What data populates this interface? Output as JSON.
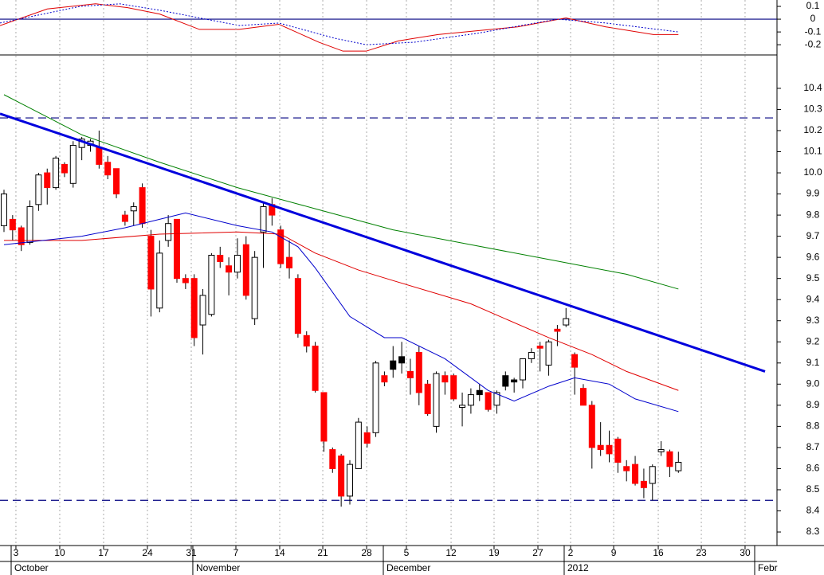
{
  "chart_data": [
    {
      "type": "line",
      "xlim": [
        -0.46,
        89.4
      ],
      "ylim": [
        -0.28,
        0.15
      ],
      "yticks": [
        0.1,
        0,
        -0.1,
        -0.2
      ],
      "hlines": [
        {
          "value": 0,
          "color": "#000080",
          "dash": false
        }
      ],
      "series": [
        {
          "color": "#e00000",
          "style": "solid",
          "x": [
            -0.46,
            5,
            10.6,
            14.3,
            18,
            22.6,
            27.2,
            31.8,
            36.4,
            39.2,
            41.9,
            45.6,
            50.2,
            59.4,
            65,
            69.6,
            75.1,
            78
          ],
          "values": [
            -0.05,
            0.08,
            0.12,
            0.09,
            0.04,
            -0.08,
            -0.08,
            -0.04,
            -0.18,
            -0.25,
            -0.25,
            -0.17,
            -0.12,
            -0.06,
            0.01,
            -0.06,
            -0.12,
            -0.12
          ]
        },
        {
          "color": "#0000cc",
          "style": "dotted",
          "x": [
            -0.46,
            8.8,
            13.4,
            18,
            27.2,
            31.8,
            38.3,
            41.9,
            47.5,
            54.8,
            64,
            69.6,
            78
          ],
          "values": [
            -0.03,
            0.1,
            0.12,
            0.07,
            -0.05,
            -0.03,
            -0.15,
            -0.2,
            -0.18,
            -0.11,
            0.0,
            -0.03,
            -0.1
          ]
        }
      ]
    },
    {
      "type": "candlestick",
      "xlim": [
        -0.46,
        89.4
      ],
      "ylim": [
        8.236,
        10.558
      ],
      "xgrid": true,
      "yticks": [
        10.4,
        10.3,
        10.2,
        10.1,
        {
          "value": 10,
          "label": "10.0"
        },
        9.9,
        9.8,
        9.7,
        9.6,
        9.5,
        9.4,
        9.3,
        9.2,
        9.1,
        {
          "value": 9,
          "label": "9.0"
        },
        8.9,
        8.8,
        8.7,
        8.6,
        8.5,
        8.4,
        8.3
      ],
      "xticks": [
        {
          "value": 1.38,
          "label": "3"
        },
        {
          "value": 6.45,
          "label": "10"
        },
        {
          "value": 11.52,
          "label": "17"
        },
        {
          "value": 16.59,
          "label": "24"
        },
        {
          "value": 21.66,
          "label": "31"
        },
        {
          "value": 26.82,
          "label": "7"
        },
        {
          "value": 31.89,
          "label": "14"
        },
        {
          "value": 36.87,
          "label": "21"
        },
        {
          "value": 41.94,
          "label": "28"
        },
        {
          "value": 46.54,
          "label": "5"
        },
        {
          "value": 51.71,
          "label": "12"
        },
        {
          "value": 56.68,
          "label": "19"
        },
        {
          "value": 61.75,
          "label": "27"
        },
        {
          "value": 65.53,
          "label": "2"
        },
        {
          "value": 70.51,
          "label": "9"
        },
        {
          "value": 75.67,
          "label": "16"
        },
        {
          "value": 80.65,
          "label": "23"
        },
        {
          "value": 85.71,
          "label": "30"
        }
      ],
      "month_ticks": [
        {
          "value": 0.83,
          "label": "October"
        },
        {
          "value": 21.84,
          "label": "November"
        },
        {
          "value": 43.87,
          "label": "December"
        },
        {
          "value": 64.79,
          "label": "2012"
        },
        {
          "value": 86.82,
          "label": "Febr"
        }
      ],
      "open": [
        9.75,
        9.78,
        9.74,
        9.67,
        9.85,
        10.0,
        9.93,
        10.04,
        9.95,
        10.12,
        10.13,
        10.12,
        10.05,
        10.02,
        9.8,
        9.82,
        9.93,
        9.7,
        9.36,
        9.68,
        9.78,
        9.5,
        9.5,
        9.28,
        9.33,
        9.61,
        9.56,
        9.53,
        9.66,
        9.31,
        9.72,
        9.85,
        9.73,
        9.6,
        9.5,
        9.23,
        9.18,
        8.96,
        8.69,
        8.66,
        8.47,
        8.6,
        8.77,
        8.77,
        9.04,
        9.07,
        9.1,
        9.06,
        9.15,
        9.0,
        8.8,
        9.04,
        9.04,
        8.89,
        8.9,
        8.95,
        8.96,
        8.9,
        8.99,
        9.01,
        9.02,
        9.12,
        9.18,
        9.09,
        9.26,
        9.28,
        9.14,
        8.98,
        8.9,
        8.71,
        8.71,
        8.74,
        8.61,
        8.62,
        8.54,
        8.53,
        8.68,
        8.68,
        8.59
      ],
      "high": [
        9.92,
        9.8,
        9.75,
        9.87,
        10.0,
        10.02,
        10.08,
        10.05,
        10.15,
        10.17,
        10.16,
        10.2,
        10.08,
        10.02,
        9.82,
        9.86,
        9.95,
        9.73,
        9.68,
        9.8,
        9.78,
        9.52,
        9.52,
        9.45,
        9.62,
        9.65,
        9.6,
        9.69,
        9.7,
        9.63,
        9.86,
        9.88,
        9.75,
        9.68,
        9.52,
        9.25,
        9.2,
        8.96,
        8.7,
        8.67,
        8.64,
        8.84,
        8.8,
        9.11,
        9.06,
        9.18,
        9.2,
        9.12,
        9.18,
        9.02,
        9.06,
        9.06,
        9.05,
        8.96,
        8.98,
        9.0,
        8.96,
        8.97,
        9.06,
        9.03,
        9.12,
        9.17,
        9.2,
        9.21,
        9.28,
        9.36,
        9.15,
        9.0,
        8.92,
        8.82,
        8.78,
        8.75,
        8.64,
        8.66,
        8.6,
        8.62,
        8.73,
        8.69,
        8.68
      ],
      "low": [
        9.72,
        9.68,
        9.63,
        9.66,
        9.82,
        9.85,
        9.92,
        9.98,
        9.93,
        10.06,
        10.1,
        10.02,
        9.97,
        9.88,
        9.75,
        9.75,
        9.74,
        9.32,
        9.34,
        9.65,
        9.48,
        9.45,
        9.18,
        9.14,
        9.32,
        9.55,
        9.42,
        9.5,
        9.4,
        9.28,
        9.55,
        9.75,
        9.55,
        9.5,
        9.22,
        9.15,
        8.96,
        8.68,
        8.58,
        8.42,
        8.43,
        8.6,
        8.7,
        8.75,
        8.99,
        9.03,
        9.05,
        8.95,
        8.9,
        8.85,
        8.77,
        8.95,
        8.92,
        8.8,
        8.86,
        8.92,
        8.87,
        8.86,
        8.97,
        8.96,
        8.98,
        9.1,
        9.06,
        9.04,
        9.18,
        9.27,
        8.95,
        8.9,
        8.6,
        8.66,
        8.63,
        8.58,
        8.54,
        8.52,
        8.46,
        8.45,
        8.66,
        8.56,
        8.58
      ],
      "close": [
        9.9,
        9.73,
        9.66,
        9.84,
        9.99,
        9.93,
        10.07,
        10.0,
        10.13,
        10.16,
        10.15,
        10.04,
        9.99,
        9.9,
        9.77,
        9.84,
        9.76,
        9.45,
        9.62,
        9.76,
        9.5,
        9.48,
        9.22,
        9.42,
        9.61,
        9.58,
        9.53,
        9.61,
        9.42,
        9.6,
        9.84,
        9.8,
        9.57,
        9.55,
        9.24,
        9.18,
        8.97,
        8.73,
        8.6,
        8.47,
        8.62,
        8.82,
        8.72,
        9.1,
        9.01,
        9.11,
        9.13,
        9.03,
        8.96,
        8.86,
        9.05,
        9.01,
        8.93,
        8.9,
        8.95,
        8.97,
        8.88,
        8.96,
        9.04,
        9.02,
        9.12,
        9.15,
        9.17,
        9.2,
        9.25,
        9.31,
        9.08,
        8.9,
        8.7,
        8.69,
        8.67,
        8.63,
        8.59,
        8.53,
        8.51,
        8.61,
        8.69,
        8.61,
        8.63
      ],
      "candle_colors": [
        "#fff",
        "#f00",
        "#f00",
        "#fff",
        "#fff",
        "#f00",
        "#fff",
        "#f00",
        "#fff",
        "#fff",
        "#fff",
        "#f00",
        "#f00",
        "#f00",
        "#f00",
        "#fff",
        "#f00",
        "#f00",
        "#fff",
        "#fff",
        "#f00",
        "#f00",
        "#f00",
        "#fff",
        "#fff",
        "#f00",
        "#f00",
        "#fff",
        "#f00",
        "#fff",
        "#fff",
        "#f00",
        "#f00",
        "#f00",
        "#f00",
        "#f00",
        "#f00",
        "#f00",
        "#f00",
        "#f00",
        "#fff",
        "#fff",
        "#f00",
        "#fff",
        "#f00",
        "#000",
        "#000",
        "#f00",
        "#f00",
        "#f00",
        "#fff",
        "#f00",
        "#f00",
        "#fff",
        "#fff",
        "#000",
        "#f00",
        "#fff",
        "#000",
        "#000",
        "#fff",
        "#fff",
        "#f00",
        "#fff",
        "#f00",
        "#fff",
        "#f00",
        "#f00",
        "#f00",
        "#f00",
        "#f00",
        "#f00",
        "#f00",
        "#f00",
        "#f00",
        "#fff",
        "#fff",
        "#f00",
        "#fff"
      ],
      "hlines": [
        {
          "value": 10.26,
          "color": "#000080",
          "dash": true
        },
        {
          "value": 8.45,
          "color": "#000080",
          "dash": true
        }
      ],
      "lines": [
        {
          "color": "#008000",
          "width": 1,
          "x": [
            0,
            9,
            18,
            27,
            36,
            45,
            54,
            63,
            72,
            78
          ],
          "values": [
            10.37,
            10.18,
            10.05,
            9.93,
            9.83,
            9.73,
            9.66,
            9.59,
            9.52,
            9.45
          ]
        },
        {
          "color": "#e00000",
          "width": 1,
          "x": [
            0,
            9,
            18,
            27,
            32,
            36,
            41,
            45,
            54,
            63,
            68,
            72,
            78
          ],
          "values": [
            9.68,
            9.68,
            9.71,
            9.72,
            9.71,
            9.62,
            9.54,
            9.49,
            9.38,
            9.22,
            9.14,
            9.06,
            8.97
          ]
        },
        {
          "color": "#0000cc",
          "width": 1,
          "x": [
            0,
            9,
            14,
            21,
            27,
            31,
            34,
            36,
            40,
            44,
            46,
            51,
            56,
            59,
            63,
            66,
            70,
            73,
            78
          ],
          "values": [
            9.66,
            9.7,
            9.74,
            9.81,
            9.75,
            9.72,
            9.65,
            9.55,
            9.32,
            9.22,
            9.22,
            9.12,
            8.97,
            8.92,
            8.99,
            9.03,
            9.0,
            8.93,
            8.87
          ]
        },
        {
          "color": "#0000dd",
          "width": 3,
          "x": [
            -0.46,
            88.02
          ],
          "values": [
            10.28,
            9.06
          ]
        }
      ]
    }
  ]
}
